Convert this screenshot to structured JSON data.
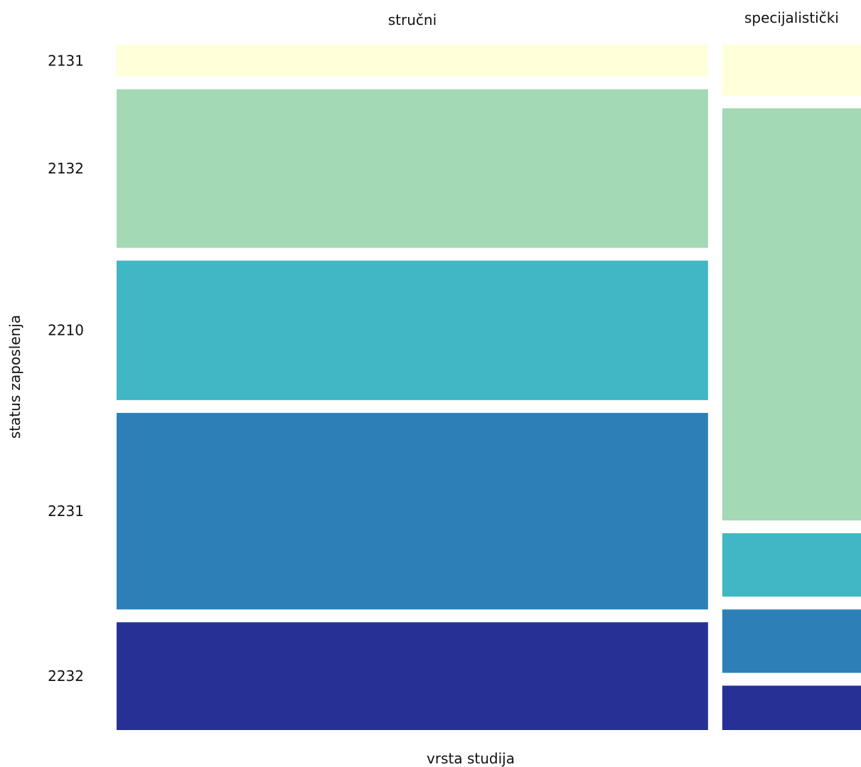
{
  "chart_data": {
    "type": "mosaic",
    "xlabel": "vrsta studija",
    "ylabel": "status zaposlenja",
    "columns": [
      {
        "name": "stručni",
        "share": 0.81
      },
      {
        "name": "specijalistički",
        "share": 0.19
      }
    ],
    "categories": [
      "2131",
      "2132",
      "2210",
      "2231",
      "2232"
    ],
    "colors": [
      "#ffffd9",
      "#a3d9b5",
      "#41b6c4",
      "#2c80b7",
      "#273195"
    ],
    "proportions": {
      "stručni": [
        0.05,
        0.25,
        0.22,
        0.31,
        0.17
      ],
      "specijalistički": [
        0.08,
        0.65,
        0.1,
        0.1,
        0.07
      ]
    },
    "legend": "none",
    "grid": false
  }
}
